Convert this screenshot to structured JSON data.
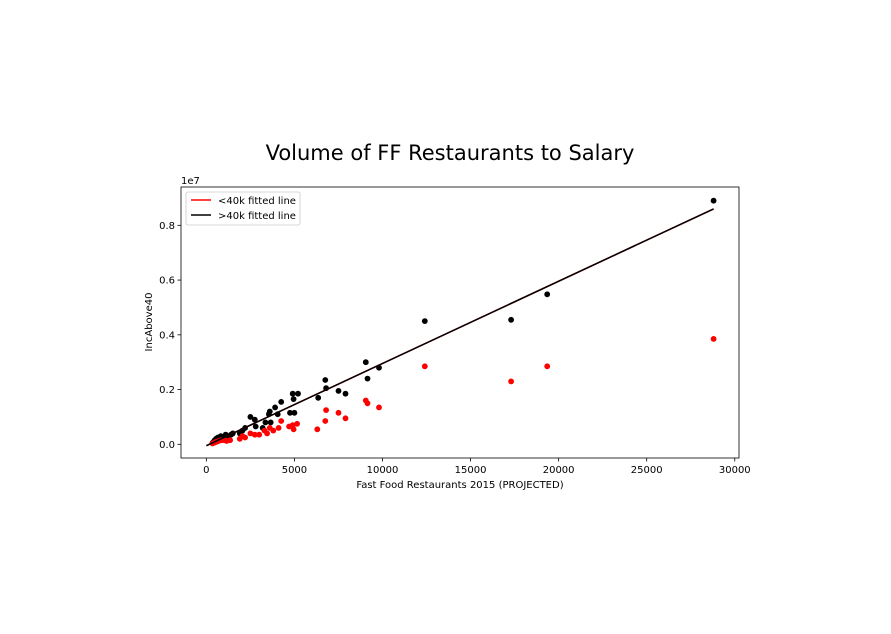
{
  "chart_data": {
    "type": "scatter",
    "title": "Volume of FF Restaurants to Salary",
    "xlabel": "Fast Food Restaurants 2015 (PROJECTED)",
    "ylabel": "IncAbove40",
    "y_offset_label": "1e7",
    "xlim": [
      -1440,
      30240
    ],
    "ylim": [
      -0.05,
      0.94
    ],
    "x_ticks": [
      0,
      5000,
      10000,
      15000,
      20000,
      25000,
      30000
    ],
    "x_tick_labels": [
      "0",
      "5000",
      "10000",
      "15000",
      "20000",
      "25000",
      "30000"
    ],
    "y_ticks": [
      0.0,
      0.2,
      0.4,
      0.6,
      0.8
    ],
    "y_tick_labels": [
      "0.0",
      "0.2",
      "0.4",
      "0.6",
      "0.8"
    ],
    "grid": false,
    "legend_position": "top-left",
    "legend": [
      {
        "label": "<40k fitted line",
        "color": "#ff0000"
      },
      {
        "label": ">40k fitted line",
        "color": "#000000"
      }
    ],
    "series": [
      {
        "color": "#000000",
        "points": [
          [
            350,
            0.005
          ],
          [
            420,
            0.01
          ],
          [
            480,
            0.015
          ],
          [
            550,
            0.02
          ],
          [
            600,
            0.01
          ],
          [
            650,
            0.025
          ],
          [
            750,
            0.02
          ],
          [
            820,
            0.03
          ],
          [
            950,
            0.025
          ],
          [
            1100,
            0.035
          ],
          [
            1250,
            0.03
          ],
          [
            1400,
            0.035
          ],
          [
            1500,
            0.04
          ],
          [
            1900,
            0.04
          ],
          [
            2050,
            0.05
          ],
          [
            2200,
            0.06
          ],
          [
            2500,
            0.1
          ],
          [
            2750,
            0.09
          ],
          [
            2800,
            0.065
          ],
          [
            3200,
            0.06
          ],
          [
            3350,
            0.08
          ],
          [
            3550,
            0.11
          ],
          [
            3600,
            0.12
          ],
          [
            3650,
            0.08
          ],
          [
            3900,
            0.135
          ],
          [
            4050,
            0.11
          ],
          [
            4250,
            0.155
          ],
          [
            4750,
            0.115
          ],
          [
            4900,
            0.185
          ],
          [
            4950,
            0.165
          ],
          [
            5000,
            0.115
          ],
          [
            5200,
            0.185
          ],
          [
            6350,
            0.17
          ],
          [
            6750,
            0.235
          ],
          [
            6800,
            0.205
          ],
          [
            7500,
            0.195
          ],
          [
            7900,
            0.185
          ],
          [
            9050,
            0.3
          ],
          [
            9150,
            0.24
          ],
          [
            9800,
            0.28
          ],
          [
            12400,
            0.45
          ],
          [
            17300,
            0.455
          ],
          [
            19350,
            0.548
          ],
          [
            28800,
            0.89
          ]
        ]
      },
      {
        "color": "#ff0000",
        "points": [
          [
            350,
            0.003
          ],
          [
            450,
            0.006
          ],
          [
            520,
            0.008
          ],
          [
            600,
            0.01
          ],
          [
            700,
            0.012
          ],
          [
            850,
            0.015
          ],
          [
            1000,
            0.015
          ],
          [
            1150,
            0.012
          ],
          [
            1350,
            0.015
          ],
          [
            1900,
            0.02
          ],
          [
            2050,
            0.03
          ],
          [
            2200,
            0.025
          ],
          [
            2500,
            0.04
          ],
          [
            2750,
            0.035
          ],
          [
            3000,
            0.035
          ],
          [
            3300,
            0.05
          ],
          [
            3450,
            0.04
          ],
          [
            3600,
            0.06
          ],
          [
            3800,
            0.05
          ],
          [
            4100,
            0.06
          ],
          [
            4250,
            0.085
          ],
          [
            4700,
            0.065
          ],
          [
            4900,
            0.07
          ],
          [
            4950,
            0.055
          ],
          [
            5150,
            0.075
          ],
          [
            6300,
            0.055
          ],
          [
            6750,
            0.085
          ],
          [
            6800,
            0.125
          ],
          [
            7500,
            0.115
          ],
          [
            7900,
            0.095
          ],
          [
            9050,
            0.16
          ],
          [
            9150,
            0.15
          ],
          [
            9800,
            0.135
          ],
          [
            12400,
            0.285
          ],
          [
            17300,
            0.23
          ],
          [
            19350,
            0.285
          ],
          [
            28800,
            0.385
          ]
        ]
      }
    ],
    "fitted_lines": [
      {
        "label": "<40k fitted line",
        "color": "#ff0000",
        "x": [
          0,
          28800
        ],
        "y": [
          -0.005,
          0.86
        ]
      },
      {
        "label": ">40k fitted line",
        "color": "#000000",
        "x": [
          0,
          28800
        ],
        "y": [
          -0.005,
          0.86
        ]
      }
    ]
  }
}
